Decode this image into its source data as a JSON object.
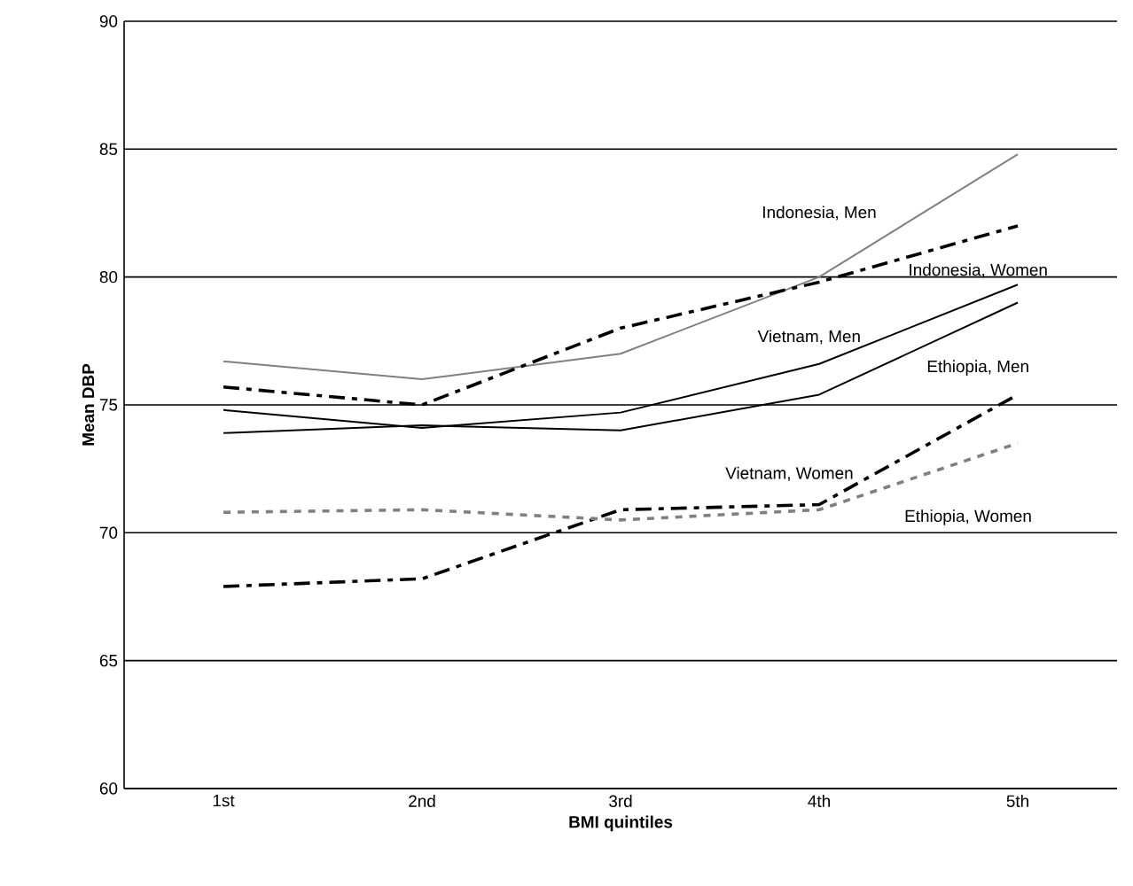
{
  "chart_data": {
    "type": "line",
    "xlabel": "BMI quintiles",
    "ylabel": "Mean DBP",
    "categories": [
      "1st",
      "2nd",
      "3rd",
      "4th",
      "5th"
    ],
    "ylim": [
      60,
      90
    ],
    "yticks": [
      60,
      65,
      70,
      75,
      80,
      85,
      90
    ],
    "grid": "y",
    "legend": false,
    "marker": "none",
    "series": [
      {
        "name": "Indonesia, Men",
        "color": "#808080",
        "line_style": "solid",
        "values": [
          76.7,
          76.0,
          77.0,
          80.0,
          84.8
        ]
      },
      {
        "name": "Indonesia, Women",
        "color": "#000000",
        "line_style": "dashed",
        "values": [
          75.7,
          75.0,
          78.0,
          79.8,
          82.0
        ]
      },
      {
        "name": "Vietnam, Men",
        "color": "#000000",
        "line_style": "solid",
        "values": [
          74.8,
          74.1,
          74.7,
          76.6,
          79.7
        ]
      },
      {
        "name": "Ethiopia, Men",
        "color": "#000000",
        "line_style": "solid",
        "values": [
          73.9,
          74.2,
          74.0,
          75.4,
          79.0
        ]
      },
      {
        "name": "Vietnam, Women",
        "color": "#000000",
        "line_style": "dashed",
        "values": [
          67.9,
          68.2,
          70.9,
          71.1,
          75.4
        ]
      },
      {
        "name": "Ethiopia, Women",
        "color": "#808080",
        "line_style": "dotted",
        "values": [
          70.8,
          70.9,
          70.5,
          70.9,
          73.5
        ]
      }
    ]
  }
}
